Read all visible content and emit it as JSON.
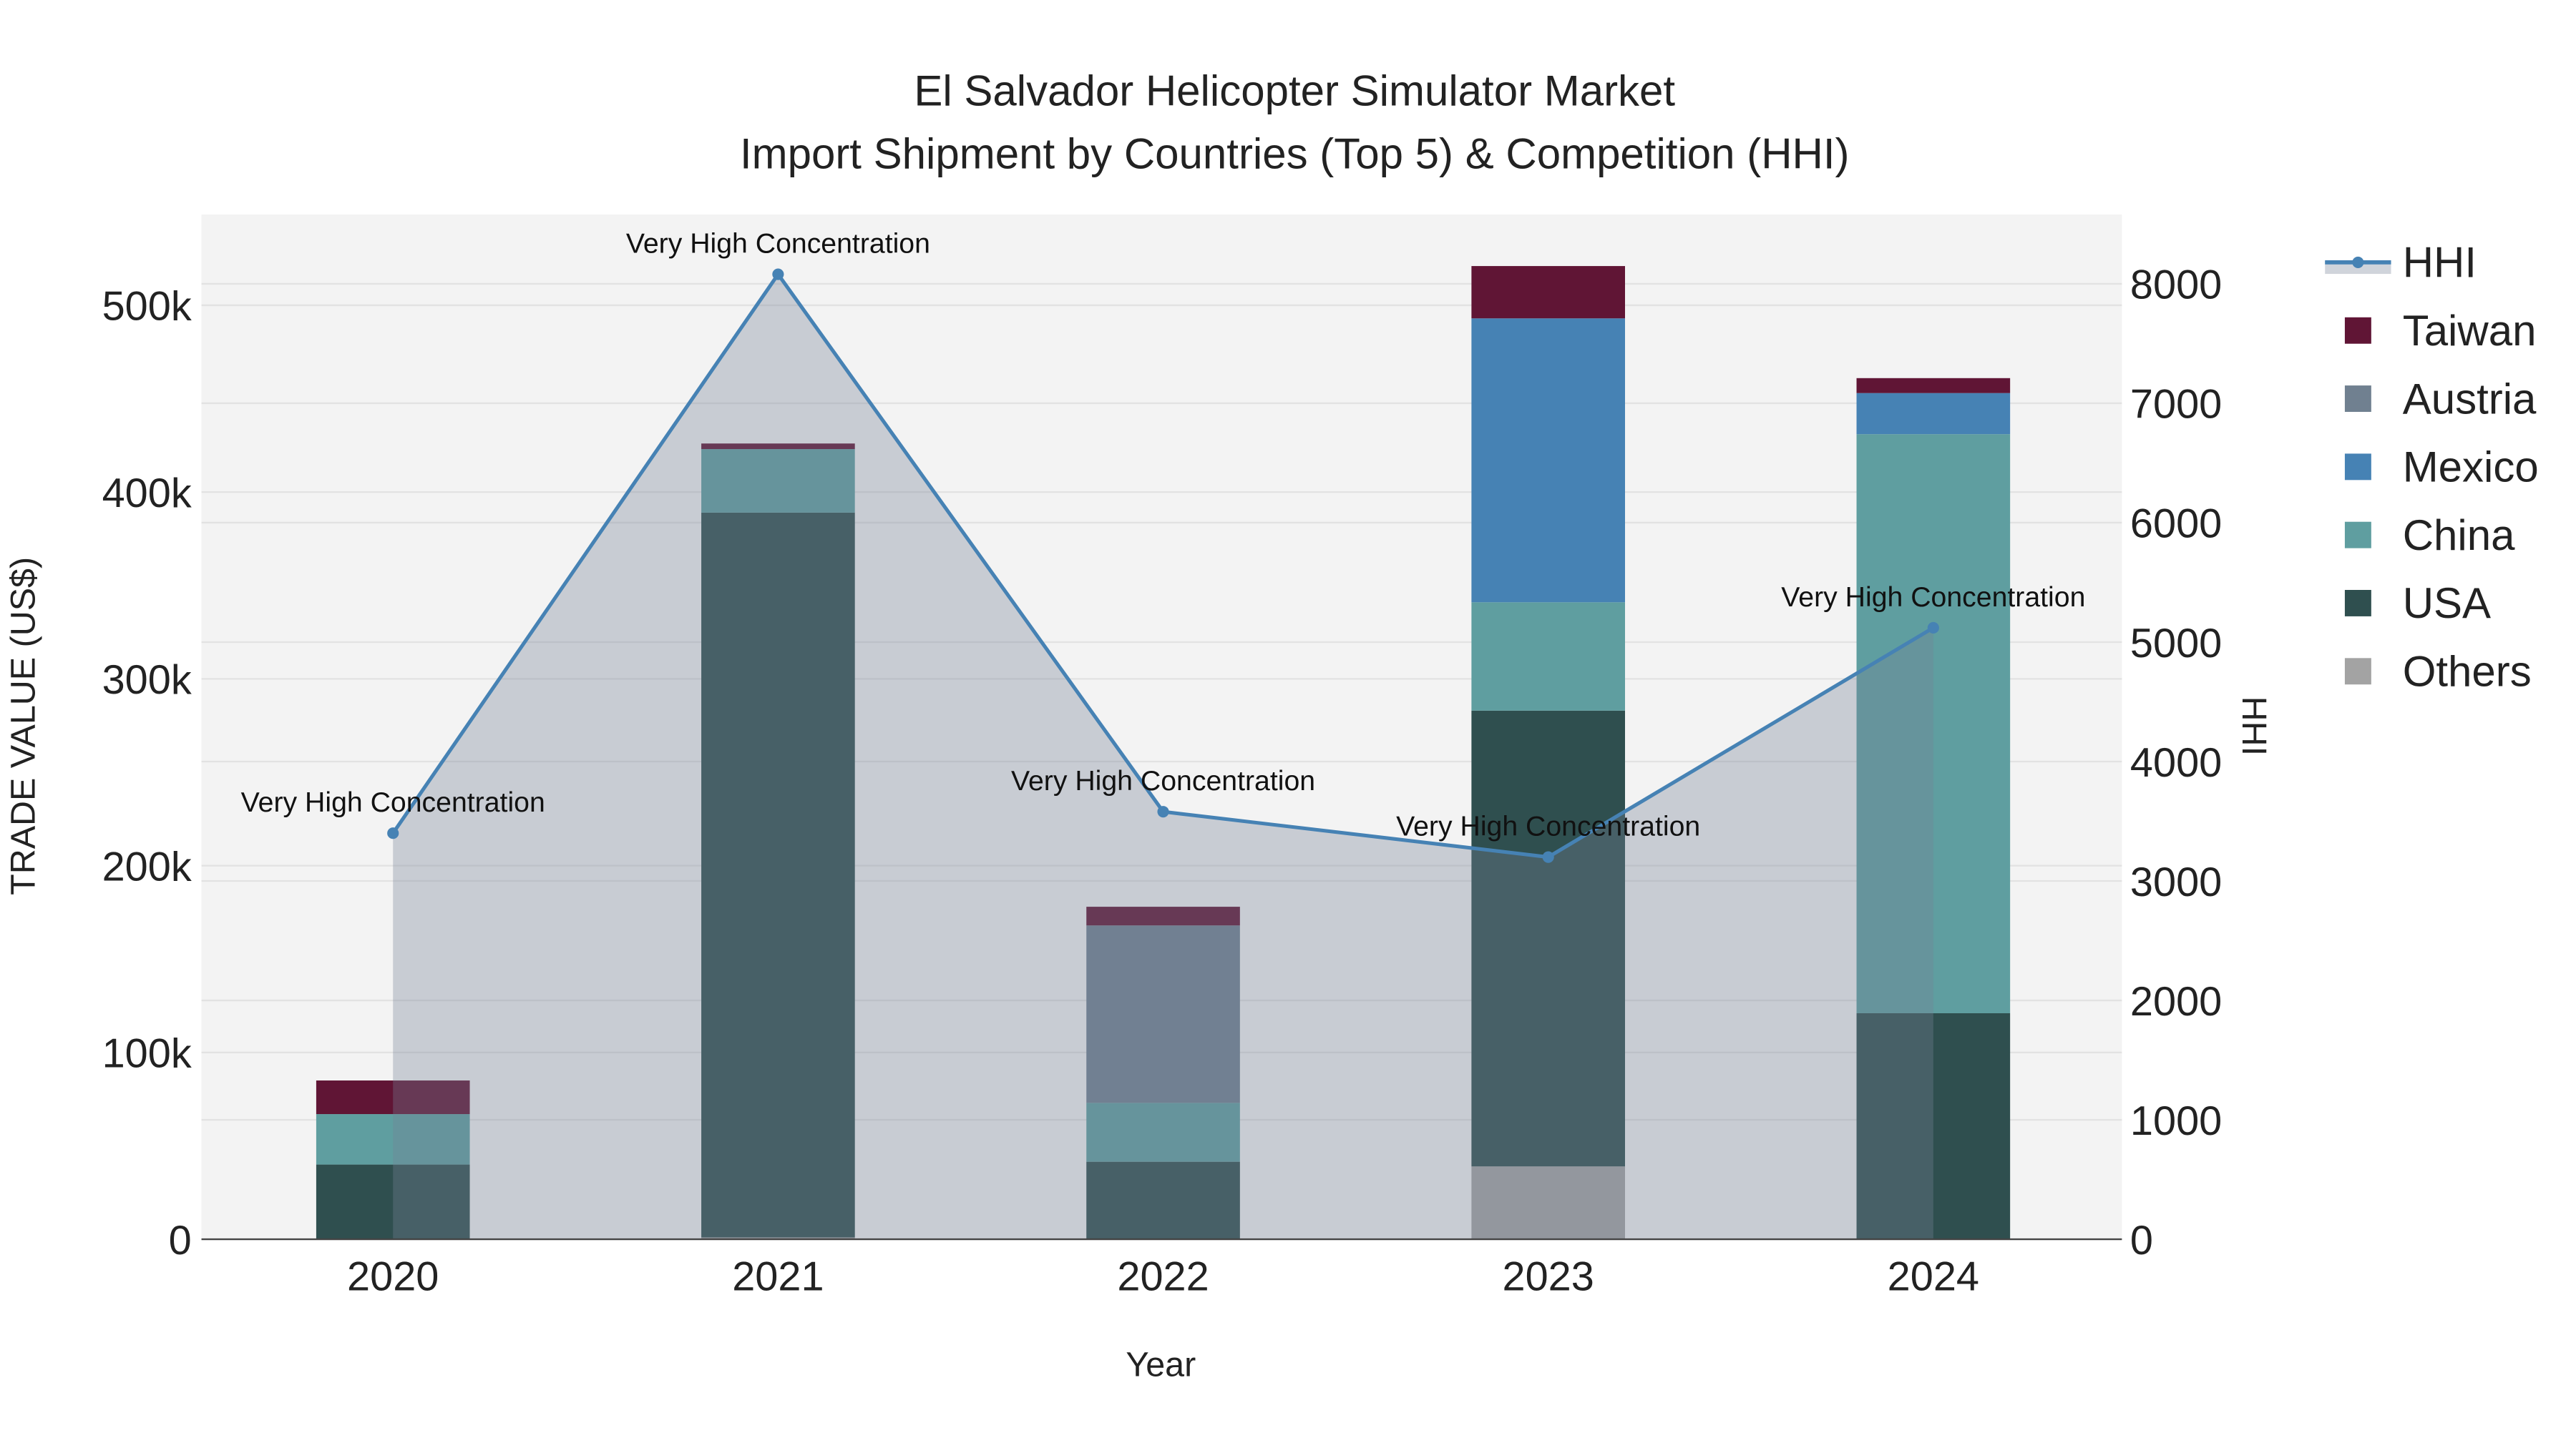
{
  "chart_data": {
    "type": "bar",
    "title_line1": "El Salvador Helicopter Simulator Market",
    "title_line2": "Import Shipment by Countries (Top 5) & Competition (HHI)",
    "xlabel": "Year",
    "ylabel": "TRADE VALUE (US$)",
    "y2label": "HHI",
    "categories": [
      "2020",
      "2021",
      "2022",
      "2023",
      "2024"
    ],
    "ylim": [
      0,
      550000
    ],
    "y2lim": [
      0,
      8600
    ],
    "yticks": [
      0,
      100000,
      200000,
      300000,
      400000,
      500000
    ],
    "ytick_labels": [
      "0",
      "100k",
      "200k",
      "300k",
      "400k",
      "500k"
    ],
    "y2ticks": [
      0,
      1000,
      2000,
      3000,
      4000,
      5000,
      6000,
      7000,
      8000
    ],
    "y2tick_labels": [
      "0",
      "1000",
      "2000",
      "3000",
      "4000",
      "5000",
      "6000",
      "7000",
      "8000"
    ],
    "stacked": true,
    "series": [
      {
        "name": "Others",
        "color": "#a3a3a3",
        "values": [
          0,
          1000,
          0,
          39000,
          0
        ]
      },
      {
        "name": "USA",
        "color": "#2f4f4f",
        "values": [
          40000,
          388000,
          41500,
          244000,
          121000
        ]
      },
      {
        "name": "China",
        "color": "#5f9ea0",
        "values": [
          27000,
          34000,
          31500,
          58000,
          310000
        ]
      },
      {
        "name": "Mexico",
        "color": "#4682b4",
        "values": [
          0,
          0,
          0,
          152000,
          22000
        ]
      },
      {
        "name": "Austria",
        "color": "#708090",
        "values": [
          0,
          0,
          95000,
          0,
          0
        ]
      },
      {
        "name": "Taiwan",
        "color": "#601535",
        "values": [
          18000,
          3000,
          10000,
          28000,
          8000
        ]
      }
    ],
    "hhi": {
      "name": "HHI",
      "color": "#4682b4",
      "values": [
        3400,
        8080,
        3580,
        3200,
        5120
      ],
      "annotations": [
        "Very High Concentration",
        "Very High Concentration",
        "Very High Concentration",
        "Very High Concentration",
        "Very High Concentration"
      ]
    },
    "legend_order": [
      "HHI",
      "Taiwan",
      "Austria",
      "Mexico",
      "China",
      "USA",
      "Others"
    ],
    "legend_position": "right",
    "grid": true
  }
}
